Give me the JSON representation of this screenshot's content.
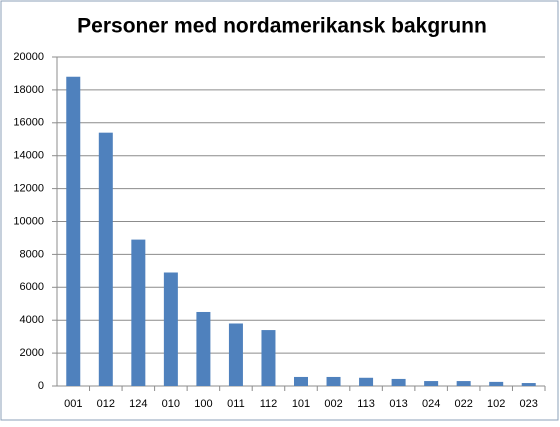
{
  "chart_data": {
    "type": "bar",
    "title": "Personer med nordamerikansk bakgrunn",
    "categories": [
      "001",
      "012",
      "124",
      "010",
      "100",
      "011",
      "112",
      "101",
      "002",
      "113",
      "013",
      "024",
      "022",
      "102",
      "023"
    ],
    "values": [
      18800,
      15400,
      8900,
      6900,
      4500,
      3800,
      3400,
      550,
      550,
      500,
      430,
      300,
      300,
      250,
      180
    ],
    "color": "#4f81bd",
    "ylim": [
      0,
      20000
    ],
    "yticks": [
      0,
      2000,
      4000,
      6000,
      8000,
      10000,
      12000,
      14000,
      16000,
      18000,
      20000
    ],
    "grid": true
  }
}
